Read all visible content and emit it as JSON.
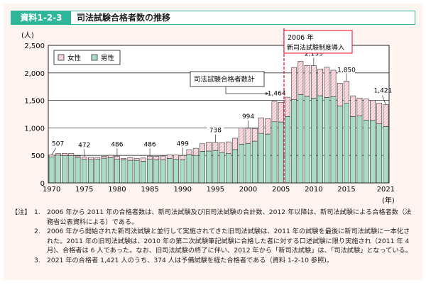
{
  "header": {
    "id": "資料1-2-3",
    "title": "司法試験合格者数の推移"
  },
  "chart_data": {
    "type": "bar",
    "stacked": true,
    "ylabel": "(人)",
    "xlabel": "(年)",
    "ylim": [
      0,
      2500
    ],
    "yticks": [
      "0",
      "500",
      "1,000",
      "1,500",
      "2,000",
      "2,500"
    ],
    "xticks": [
      "1970",
      "1975",
      "1980",
      "1985",
      "1990",
      "1995",
      "2000",
      "2005",
      "2010",
      "2015",
      "2021"
    ],
    "grid": true,
    "legend": {
      "position": "top-left",
      "entries": [
        "女性",
        "男性"
      ]
    },
    "colors": {
      "female": "#f4b8c4",
      "male": "#a8dcc4",
      "marker": "#e8304a"
    },
    "years": [
      1970,
      1971,
      1972,
      1973,
      1974,
      1975,
      1976,
      1977,
      1978,
      1979,
      1980,
      1981,
      1982,
      1983,
      1984,
      1985,
      1986,
      1987,
      1988,
      1989,
      1990,
      1991,
      1992,
      1993,
      1994,
      1995,
      1996,
      1997,
      1998,
      1999,
      2000,
      2001,
      2002,
      2003,
      2004,
      2005,
      2006,
      2007,
      2008,
      2009,
      2010,
      2011,
      2012,
      2013,
      2014,
      2015,
      2016,
      2017,
      2018,
      2019,
      2020,
      2021
    ],
    "series": [
      {
        "name": "男性",
        "values": [
          475,
          505,
          495,
          495,
          465,
          430,
          420,
          430,
          450,
          460,
          430,
          420,
          410,
          410,
          395,
          435,
          420,
          420,
          445,
          430,
          420,
          518,
          500,
          574,
          580,
          590,
          554,
          532,
          606,
          705,
          718,
          760,
          900,
          889,
          1112,
          1108,
          1207,
          1512,
          1607,
          1572,
          1542,
          1585,
          1555,
          1565,
          1400,
          1447,
          1207,
          1220,
          1143,
          1135,
          1074,
          1027
        ]
      },
      {
        "name": "女性",
        "values": [
          32,
          28,
          42,
          42,
          26,
          42,
          45,
          35,
          35,
          43,
          56,
          26,
          47,
          38,
          58,
          51,
          66,
          69,
          67,
          76,
          79,
          87,
          130,
          138,
          160,
          148,
          180,
          214,
          206,
          295,
          276,
          230,
          283,
          281,
          371,
          356,
          351,
          587,
          602,
          563,
          591,
          484,
          547,
          484,
          410,
          403,
          376,
          323,
          382,
          367,
          376,
          394
        ]
      }
    ],
    "totals": [
      507,
      533,
      537,
      537,
      491,
      472,
      465,
      465,
      485,
      503,
      486,
      446,
      457,
      448,
      453,
      486,
      486,
      489,
      512,
      506,
      499,
      605,
      630,
      712,
      740,
      738,
      734,
      746,
      812,
      1000,
      994,
      990,
      1183,
      1170,
      1483,
      1464,
      1558,
      2099,
      2209,
      2135,
      2133,
      2069,
      2102,
      2049,
      1810,
      1850,
      1583,
      1543,
      1525,
      1502,
      1450,
      1421
    ],
    "data_labels": [
      {
        "year": 1970,
        "text": "507"
      },
      {
        "year": 1975,
        "text": "472"
      },
      {
        "year": 1980,
        "text": "486"
      },
      {
        "year": 1985,
        "text": "486"
      },
      {
        "year": 1990,
        "text": "499"
      },
      {
        "year": 1995,
        "text": "738"
      },
      {
        "year": 2000,
        "text": "994"
      },
      {
        "year": 2005,
        "text": "1,464"
      },
      {
        "year": 2010,
        "text": "2,133"
      },
      {
        "year": 2015,
        "text": "1,850"
      },
      {
        "year": 2021,
        "text": "1,421"
      }
    ],
    "annotations": {
      "total_label": "司法試験合格者数計",
      "event_year": "2006 年",
      "event_text": "新司法試験制度導入"
    }
  },
  "notes": {
    "head": "【注】",
    "items": [
      {
        "num": "1.",
        "text": "2006 年から 2011 年の合格者数は、新司法試験及び旧司法試験の合計数、2012 年以降は、新司法試験による合格者数（法務省公表資料による）である。"
      },
      {
        "num": "2.",
        "text": "2006 年から開始された新司法試験と並行して実施されてきた旧司法試験は、2011 年の試験を最後に新司法試験に一本化された。2011 年の旧司法試験は、2010 年の第二次試験筆記試験に合格した者に対する口述試験に限り実施され（2011 年 4 月)、合格者は 6 人であった。なお、旧司法試験の終了に伴い、2012 年から「新司法試験」は、「司法試験」となっている。"
      },
      {
        "num": "3.",
        "text": "2021 年の合格者 1,421 人のうち、374 人は予備試験を経た合格者である（資料 1-2-10 参照)。"
      }
    ]
  }
}
